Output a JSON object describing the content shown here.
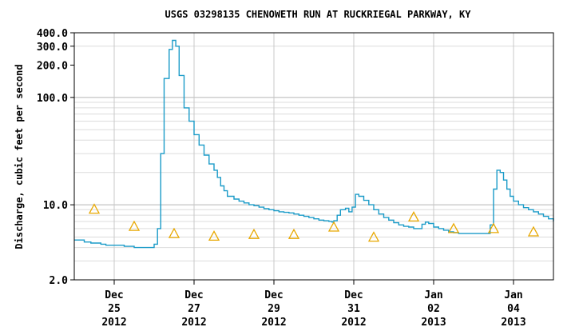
{
  "chart_data": {
    "type": "line",
    "title": "USGS 03298135 CHENOWETH RUN AT RUCKRIEGAL PARKWAY, KY",
    "ylabel": "Discharge, cubic feet per second",
    "xlabel": "",
    "y_scale": "log",
    "ylim": [
      2.0,
      400.0
    ],
    "xlim": [
      "2012-12-24 00:00",
      "2013-01-05 00:00"
    ],
    "grid": true,
    "legend": "none",
    "y_ticks": [
      {
        "value": 2.0,
        "label": "2.0"
      },
      {
        "value": 10.0,
        "label": "10.0"
      },
      {
        "value": 100.0,
        "label": "100.0"
      },
      {
        "value": 200.0,
        "label": "200.0"
      },
      {
        "value": 300.0,
        "label": "300.0"
      },
      {
        "value": 400.0,
        "label": "400.0"
      }
    ],
    "x_ticks": [
      {
        "date": "2012-12-25",
        "month": "Dec",
        "day": "25",
        "year": "2012"
      },
      {
        "date": "2012-12-27",
        "month": "Dec",
        "day": "27",
        "year": "2012"
      },
      {
        "date": "2012-12-29",
        "month": "Dec",
        "day": "29",
        "year": "2012"
      },
      {
        "date": "2012-12-31",
        "month": "Dec",
        "day": "31",
        "year": "2012"
      },
      {
        "date": "2013-01-02",
        "month": "Jan",
        "day": "02",
        "year": "2013"
      },
      {
        "date": "2013-01-04",
        "month": "Jan",
        "day": "04",
        "year": "2013"
      }
    ],
    "series": [
      {
        "color": "#1a9bc8",
        "points": [
          [
            "2012-12-24 00:00",
            4.7
          ],
          [
            "2012-12-24 06:00",
            4.5
          ],
          [
            "2012-12-24 10:00",
            4.4
          ],
          [
            "2012-12-24 16:00",
            4.3
          ],
          [
            "2012-12-24 19:00",
            4.2
          ],
          [
            "2012-12-25 00:00",
            4.2
          ],
          [
            "2012-12-25 06:00",
            4.1
          ],
          [
            "2012-12-25 12:00",
            4.0
          ],
          [
            "2012-12-25 18:00",
            4.0
          ],
          [
            "2012-12-25 21:00",
            4.0
          ],
          [
            "2012-12-26 00:00",
            4.3
          ],
          [
            "2012-12-26 02:00",
            6.0
          ],
          [
            "2012-12-26 04:00",
            30.0
          ],
          [
            "2012-12-26 06:00",
            150.0
          ],
          [
            "2012-12-26 09:00",
            280.0
          ],
          [
            "2012-12-26 11:00",
            340.0
          ],
          [
            "2012-12-26 13:00",
            300.0
          ],
          [
            "2012-12-26 15:00",
            160.0
          ],
          [
            "2012-12-26 18:00",
            80.0
          ],
          [
            "2012-12-26 21:00",
            60.0
          ],
          [
            "2012-12-27 00:00",
            45.0
          ],
          [
            "2012-12-27 03:00",
            36.0
          ],
          [
            "2012-12-27 06:00",
            29.0
          ],
          [
            "2012-12-27 09:00",
            24.0
          ],
          [
            "2012-12-27 12:00",
            21.0
          ],
          [
            "2012-12-27 14:00",
            18.0
          ],
          [
            "2012-12-27 16:00",
            15.0
          ],
          [
            "2012-12-27 18:00",
            13.5
          ],
          [
            "2012-12-27 20:00",
            12.0
          ],
          [
            "2012-12-28 00:00",
            11.3
          ],
          [
            "2012-12-28 03:00",
            10.8
          ],
          [
            "2012-12-28 06:00",
            10.4
          ],
          [
            "2012-12-28 09:00",
            10.0
          ],
          [
            "2012-12-28 12:00",
            9.8
          ],
          [
            "2012-12-28 15:00",
            9.5
          ],
          [
            "2012-12-28 18:00",
            9.2
          ],
          [
            "2012-12-28 21:00",
            9.0
          ],
          [
            "2012-12-29 00:00",
            8.8
          ],
          [
            "2012-12-29 03:00",
            8.6
          ],
          [
            "2012-12-29 06:00",
            8.5
          ],
          [
            "2012-12-29 09:00",
            8.4
          ],
          [
            "2012-12-29 12:00",
            8.2
          ],
          [
            "2012-12-29 15:00",
            8.0
          ],
          [
            "2012-12-29 18:00",
            7.8
          ],
          [
            "2012-12-29 21:00",
            7.6
          ],
          [
            "2012-12-30 00:00",
            7.4
          ],
          [
            "2012-12-30 03:00",
            7.2
          ],
          [
            "2012-12-30 06:00",
            7.1
          ],
          [
            "2012-12-30 09:00",
            7.0
          ],
          [
            "2012-12-30 11:00",
            6.9
          ],
          [
            "2012-12-30 12:00",
            7.1
          ],
          [
            "2012-12-30 14:00",
            8.0
          ],
          [
            "2012-12-30 16:00",
            9.0
          ],
          [
            "2012-12-30 19:00",
            9.3
          ],
          [
            "2012-12-30 21:00",
            8.6
          ],
          [
            "2012-12-30 23:00",
            9.5
          ],
          [
            "2012-12-31 01:00",
            12.5
          ],
          [
            "2012-12-31 03:00",
            12.0
          ],
          [
            "2012-12-31 06:00",
            11.0
          ],
          [
            "2012-12-31 09:00",
            10.0
          ],
          [
            "2012-12-31 12:00",
            9.0
          ],
          [
            "2012-12-31 15:00",
            8.2
          ],
          [
            "2012-12-31 18:00",
            7.6
          ],
          [
            "2012-12-31 21:00",
            7.2
          ],
          [
            "2013-01-01 00:00",
            6.8
          ],
          [
            "2013-01-01 03:00",
            6.5
          ],
          [
            "2013-01-01 06:00",
            6.3
          ],
          [
            "2013-01-01 09:00",
            6.2
          ],
          [
            "2013-01-01 12:00",
            6.0
          ],
          [
            "2013-01-01 15:00",
            6.0
          ],
          [
            "2013-01-01 17:00",
            6.6
          ],
          [
            "2013-01-01 19:00",
            6.9
          ],
          [
            "2013-01-01 21:00",
            6.7
          ],
          [
            "2013-01-02 00:00",
            6.2
          ],
          [
            "2013-01-02 03:00",
            6.0
          ],
          [
            "2013-01-02 06:00",
            5.8
          ],
          [
            "2013-01-02 09:00",
            5.6
          ],
          [
            "2013-01-02 12:00",
            5.5
          ],
          [
            "2013-01-02 15:00",
            5.4
          ],
          [
            "2013-01-02 18:00",
            5.4
          ],
          [
            "2013-01-02 21:00",
            5.4
          ],
          [
            "2013-01-03 00:00",
            5.4
          ],
          [
            "2013-01-03 03:00",
            5.4
          ],
          [
            "2013-01-03 06:00",
            5.4
          ],
          [
            "2013-01-03 08:00",
            5.4
          ],
          [
            "2013-01-03 10:00",
            6.5
          ],
          [
            "2013-01-03 12:00",
            14.0
          ],
          [
            "2013-01-03 14:00",
            21.0
          ],
          [
            "2013-01-03 16:00",
            20.0
          ],
          [
            "2013-01-03 18:00",
            17.0
          ],
          [
            "2013-01-03 20:00",
            14.0
          ],
          [
            "2013-01-03 22:00",
            12.0
          ],
          [
            "2013-01-04 00:00",
            10.8
          ],
          [
            "2013-01-04 03:00",
            10.0
          ],
          [
            "2013-01-04 06:00",
            9.4
          ],
          [
            "2013-01-04 09:00",
            9.0
          ],
          [
            "2013-01-04 12:00",
            8.6
          ],
          [
            "2013-01-04 15:00",
            8.2
          ],
          [
            "2013-01-04 18:00",
            7.8
          ],
          [
            "2013-01-04 21:00",
            7.4
          ],
          [
            "2013-01-05 00:00",
            7.0
          ]
        ]
      }
    ],
    "triangle_markers": {
      "color": "#e8a800",
      "points": [
        [
          "2012-12-24 12:00",
          9.1
        ],
        [
          "2012-12-25 12:00",
          6.3
        ],
        [
          "2012-12-26 12:00",
          5.4
        ],
        [
          "2012-12-27 12:00",
          5.1
        ],
        [
          "2012-12-28 12:00",
          5.3
        ],
        [
          "2012-12-29 12:00",
          5.3
        ],
        [
          "2012-12-30 12:00",
          6.2
        ],
        [
          "2012-12-31 12:00",
          5.0
        ],
        [
          "2013-01-01 12:00",
          7.7
        ],
        [
          "2013-01-02 12:00",
          6.0
        ],
        [
          "2013-01-03 12:00",
          6.0
        ],
        [
          "2013-01-04 12:00",
          5.6
        ]
      ]
    }
  }
}
